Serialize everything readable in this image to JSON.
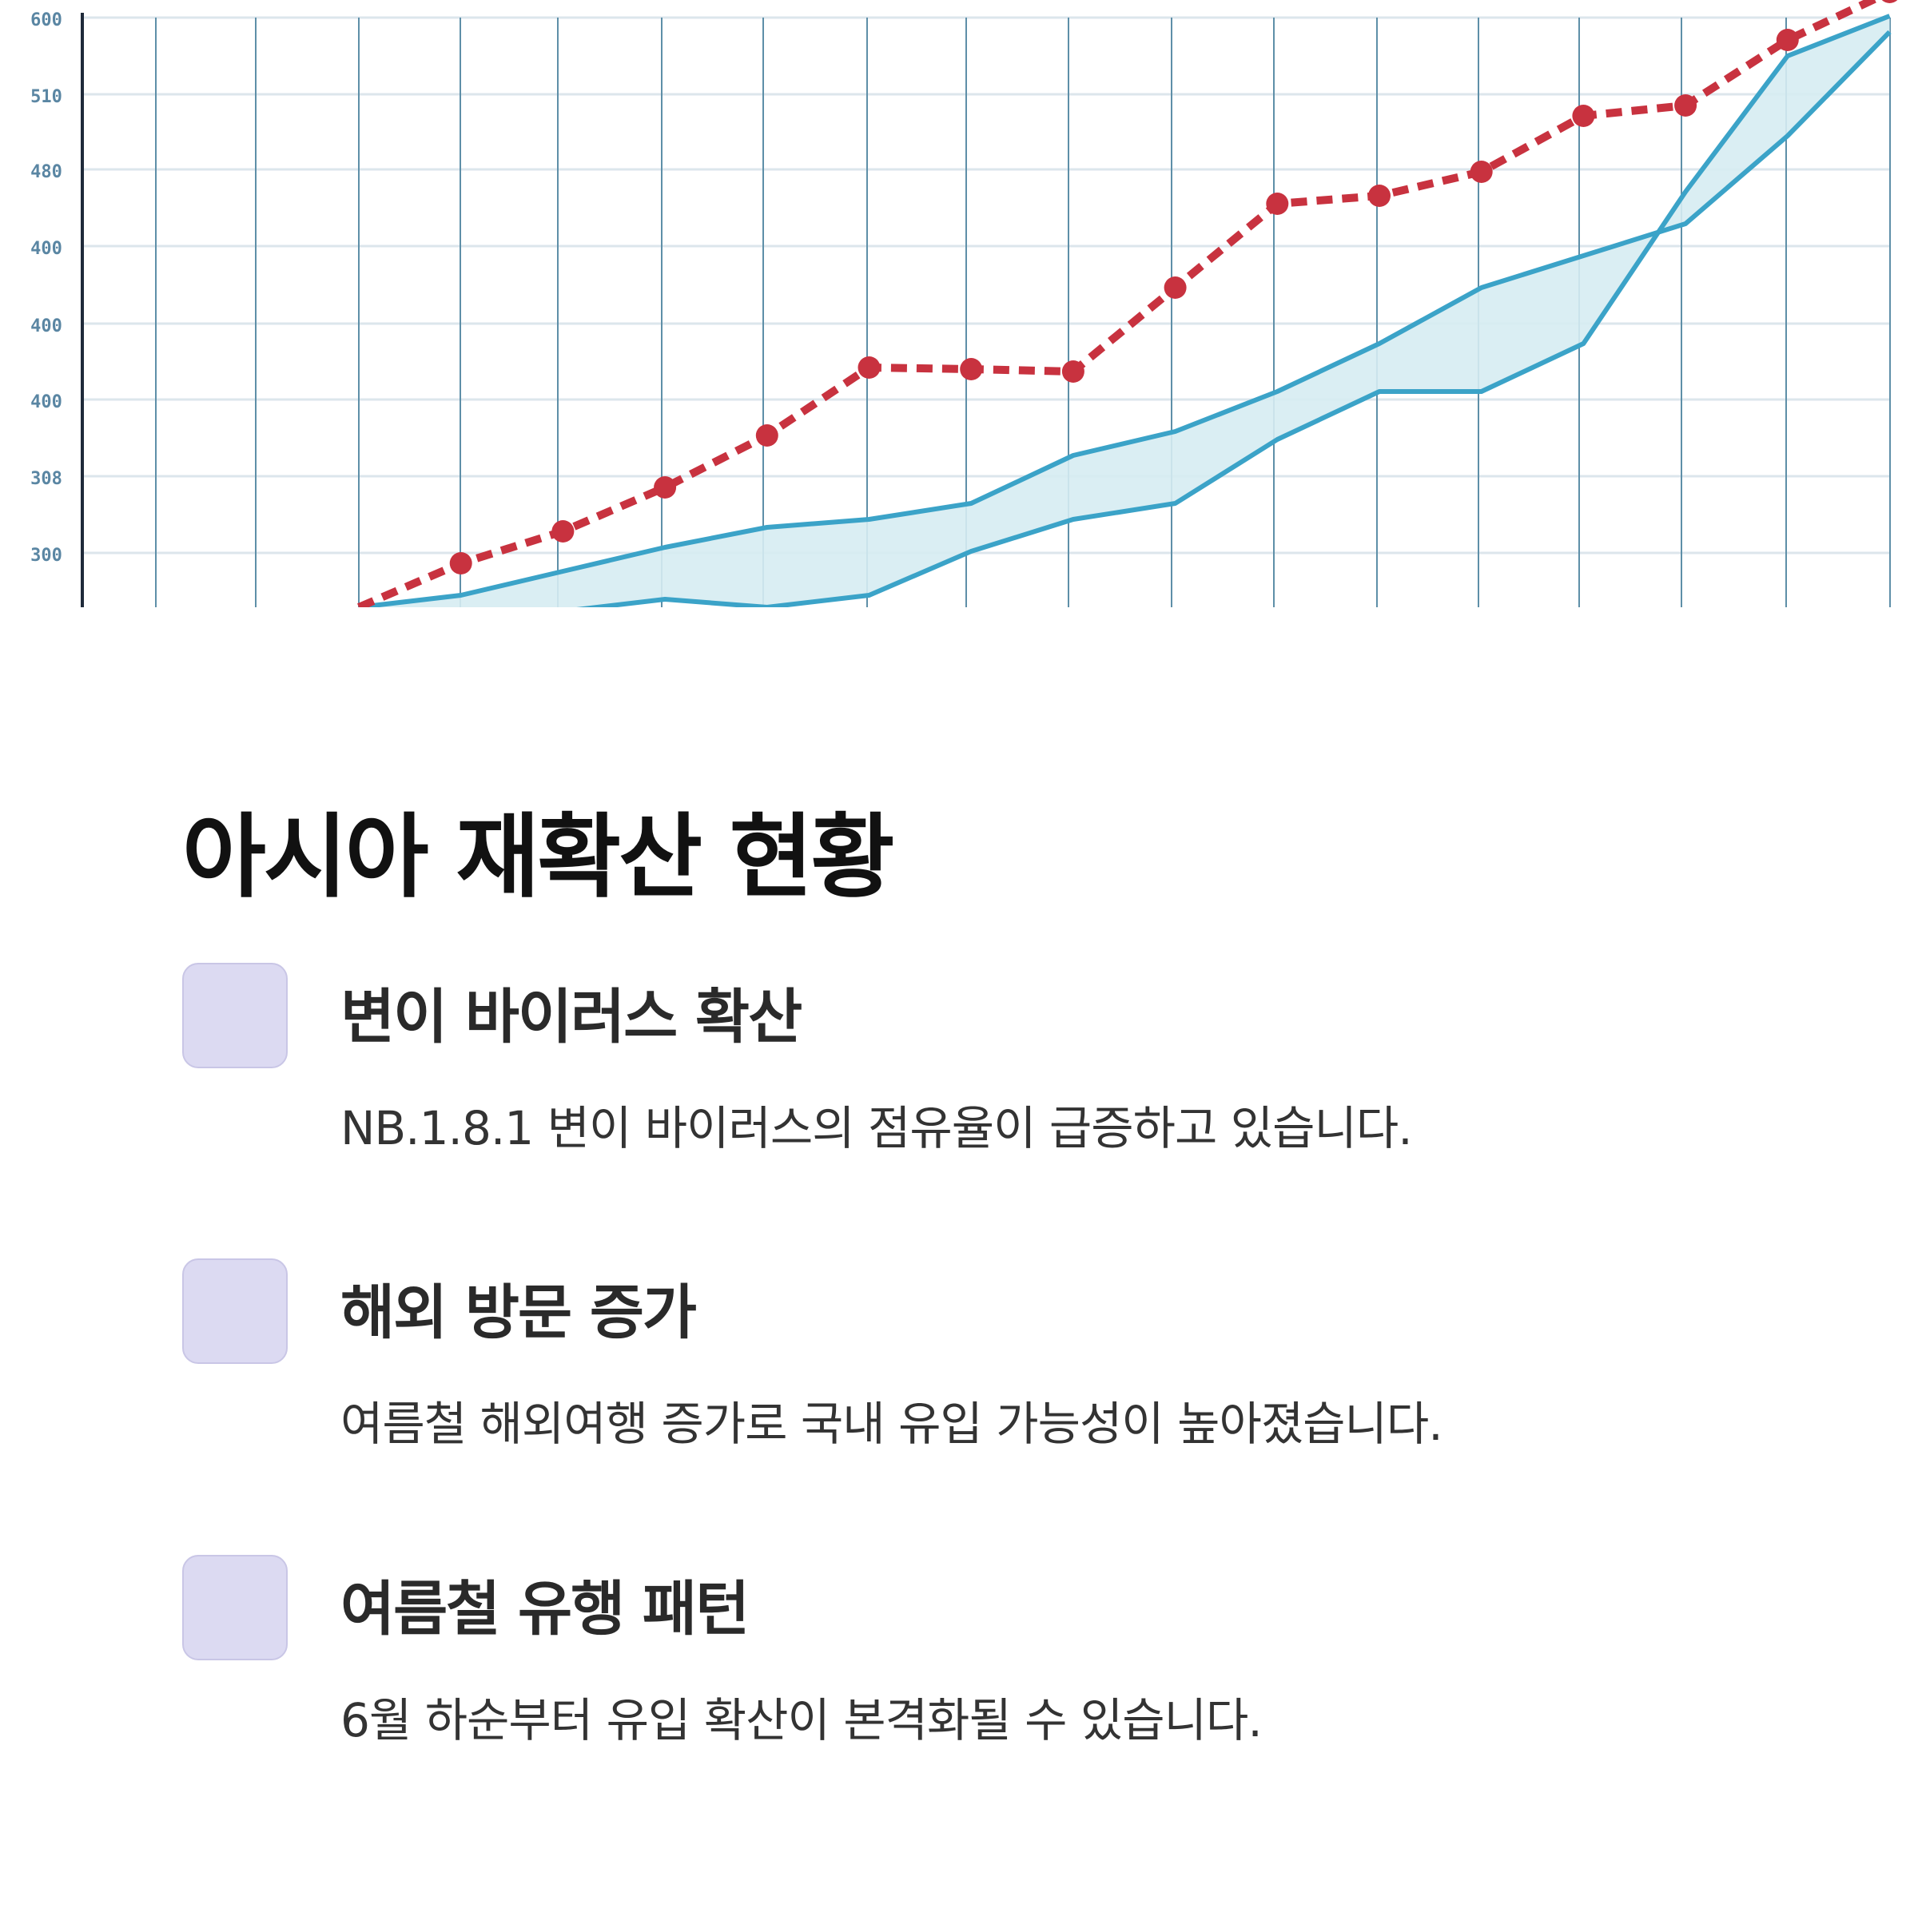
{
  "slide": {
    "title": "아시아 재확산 현황",
    "items": [
      {
        "icon": "placeholder-square-icon",
        "heading": "변이 바이러스 확산",
        "text": "NB.1.8.1 변이 바이러스의 점유율이 급증하고 있습니다."
      },
      {
        "icon": "placeholder-square-icon",
        "heading": "해외 방문 증가",
        "text": "여름철 해외여행 증가로 국내 유입 가능성이 높아졌습니다."
      },
      {
        "icon": "placeholder-square-icon",
        "heading": "여름철 유행 패턴",
        "text": "6월 하순부터 유입 확산이 본격화될 수 있습니다."
      }
    ]
  },
  "colors": {
    "background": "#ffffff",
    "title": "#111111",
    "icon_fill": "#dcdaf2",
    "dotted_line": "#c8323f",
    "blue_line": "#3ba3c8",
    "area_fill": "#d6ecf2",
    "grid_vertical": "#5e8fa8",
    "grid_horizontal": "#dce6ec"
  },
  "chart_data": {
    "type": "line",
    "ytick_labels": [
      "600",
      "510",
      "480",
      "400",
      "400",
      "400",
      "308",
      "300"
    ],
    "series": [
      {
        "style": "dashed-markers",
        "color": "#c8323f",
        "values": [
          0,
          55,
          95,
          150,
          215,
          300,
          298,
          295,
          400,
          505,
          515,
          545,
          615,
          628,
          710,
          770
        ]
      },
      {
        "style": "line-area-upper",
        "color": "#3ba3c8",
        "values": [
          0,
          15,
          45,
          75,
          100,
          110,
          130,
          190,
          220,
          270,
          330,
          400,
          440,
          480,
          590,
          720
        ]
      },
      {
        "style": "line-area-lower",
        "color": "#3ba3c8",
        "values": [
          -10,
          -8,
          -5,
          10,
          0,
          15,
          70,
          110,
          130,
          210,
          270,
          270,
          330,
          520,
          690,
          740
        ]
      }
    ]
  }
}
